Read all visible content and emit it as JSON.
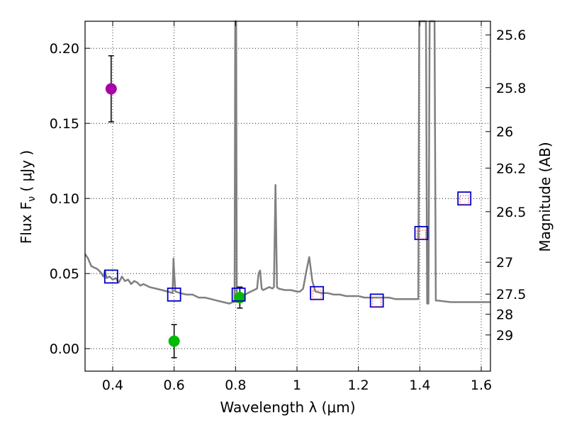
{
  "chart_data": {
    "type": "scatter",
    "xlabel": "Wavelength  λ (μm)",
    "ylabel": "Flux  F",
    "ylabel_sub": "ν",
    "ylabel_unit": "  ( μJy )",
    "y2label": "Magnitude (AB)",
    "xlim": [
      0.31,
      1.63
    ],
    "ylim": [
      -0.015,
      0.218
    ],
    "grid": true,
    "x_ticks": [
      {
        "value": 0.4,
        "label": "0.4"
      },
      {
        "value": 0.6,
        "label": "0.6"
      },
      {
        "value": 0.8,
        "label": "0.8"
      },
      {
        "value": 1.0,
        "label": "1"
      },
      {
        "value": 1.2,
        "label": "1.2"
      },
      {
        "value": 1.4,
        "label": "1.4"
      },
      {
        "value": 1.6,
        "label": "1.6"
      }
    ],
    "y_ticks": [
      {
        "value": 0.0,
        "label": "0.00"
      },
      {
        "value": 0.05,
        "label": "0.05"
      },
      {
        "value": 0.1,
        "label": "0.10"
      },
      {
        "value": 0.15,
        "label": "0.15"
      },
      {
        "value": 0.2,
        "label": "0.20"
      }
    ],
    "y2_ticks": [
      {
        "value": 25.6,
        "label": "25.6"
      },
      {
        "value": 25.8,
        "label": "25.8"
      },
      {
        "value": 26.0,
        "label": "26"
      },
      {
        "value": 26.2,
        "label": "26.2"
      },
      {
        "value": 26.5,
        "label": "26.5"
      },
      {
        "value": 27.0,
        "label": "27"
      },
      {
        "value": 27.5,
        "label": "27.5"
      },
      {
        "value": 28.0,
        "label": "28"
      },
      {
        "value": 29.0,
        "label": "29"
      }
    ],
    "series": [
      {
        "kind": "line",
        "color": "#808080",
        "points": [
          [
            0.31,
            0.063
          ],
          [
            0.32,
            0.06
          ],
          [
            0.33,
            0.055
          ],
          [
            0.34,
            0.054
          ],
          [
            0.35,
            0.053
          ],
          [
            0.36,
            0.051
          ],
          [
            0.37,
            0.048
          ],
          [
            0.375,
            0.052
          ],
          [
            0.38,
            0.047
          ],
          [
            0.39,
            0.048
          ],
          [
            0.4,
            0.046
          ],
          [
            0.41,
            0.047
          ],
          [
            0.42,
            0.044
          ],
          [
            0.43,
            0.048
          ],
          [
            0.44,
            0.045
          ],
          [
            0.45,
            0.046
          ],
          [
            0.46,
            0.043
          ],
          [
            0.47,
            0.045
          ],
          [
            0.48,
            0.044
          ],
          [
            0.49,
            0.042
          ],
          [
            0.5,
            0.043
          ],
          [
            0.52,
            0.041
          ],
          [
            0.54,
            0.04
          ],
          [
            0.56,
            0.039
          ],
          [
            0.58,
            0.038
          ],
          [
            0.595,
            0.037
          ],
          [
            0.598,
            0.06
          ],
          [
            0.601,
            0.048
          ],
          [
            0.604,
            0.038
          ],
          [
            0.62,
            0.037
          ],
          [
            0.64,
            0.036
          ],
          [
            0.66,
            0.036
          ],
          [
            0.68,
            0.034
          ],
          [
            0.7,
            0.034
          ],
          [
            0.72,
            0.033
          ],
          [
            0.74,
            0.032
          ],
          [
            0.76,
            0.031
          ],
          [
            0.78,
            0.03
          ],
          [
            0.79,
            0.031
          ],
          [
            0.797,
            0.031
          ],
          [
            0.799,
            0.218
          ],
          [
            0.802,
            0.218
          ],
          [
            0.804,
            0.031
          ],
          [
            0.81,
            0.032
          ],
          [
            0.82,
            0.034
          ],
          [
            0.83,
            0.036
          ],
          [
            0.84,
            0.037
          ],
          [
            0.85,
            0.038
          ],
          [
            0.86,
            0.039
          ],
          [
            0.87,
            0.04
          ],
          [
            0.875,
            0.05
          ],
          [
            0.88,
            0.052
          ],
          [
            0.885,
            0.04
          ],
          [
            0.89,
            0.039
          ],
          [
            0.9,
            0.04
          ],
          [
            0.91,
            0.041
          ],
          [
            0.92,
            0.04
          ],
          [
            0.925,
            0.041
          ],
          [
            0.93,
            0.109
          ],
          [
            0.935,
            0.041
          ],
          [
            0.94,
            0.04
          ],
          [
            0.96,
            0.039
          ],
          [
            0.98,
            0.039
          ],
          [
            1.0,
            0.038
          ],
          [
            1.01,
            0.038
          ],
          [
            1.02,
            0.04
          ],
          [
            1.03,
            0.051
          ],
          [
            1.04,
            0.061
          ],
          [
            1.05,
            0.045
          ],
          [
            1.06,
            0.038
          ],
          [
            1.08,
            0.037
          ],
          [
            1.1,
            0.037
          ],
          [
            1.12,
            0.036
          ],
          [
            1.14,
            0.036
          ],
          [
            1.16,
            0.035
          ],
          [
            1.18,
            0.035
          ],
          [
            1.2,
            0.035
          ],
          [
            1.22,
            0.034
          ],
          [
            1.24,
            0.034
          ],
          [
            1.26,
            0.034
          ],
          [
            1.28,
            0.034
          ],
          [
            1.3,
            0.034
          ],
          [
            1.32,
            0.033
          ],
          [
            1.34,
            0.033
          ],
          [
            1.36,
            0.033
          ],
          [
            1.38,
            0.033
          ],
          [
            1.395,
            0.033
          ],
          [
            1.398,
            0.218
          ],
          [
            1.405,
            0.218
          ],
          [
            1.41,
            0.218
          ],
          [
            1.42,
            0.218
          ],
          [
            1.424,
            0.03
          ],
          [
            1.428,
            0.03
          ],
          [
            1.432,
            0.218
          ],
          [
            1.44,
            0.218
          ],
          [
            1.448,
            0.218
          ],
          [
            1.452,
            0.032
          ],
          [
            1.46,
            0.032
          ],
          [
            1.5,
            0.031
          ],
          [
            1.55,
            0.031
          ],
          [
            1.6,
            0.031
          ],
          [
            1.63,
            0.031
          ]
        ]
      },
      {
        "kind": "points",
        "marker": "circle",
        "points": [
          {
            "x": 0.395,
            "y": 0.173,
            "yerr": 0.022,
            "color": "#aa00aa"
          },
          {
            "x": 0.6,
            "y": 0.005,
            "yerr": 0.011,
            "color": "#00bb00"
          },
          {
            "x": 0.814,
            "y": 0.034,
            "yerr": 0.007,
            "color": "#00bb00"
          }
        ]
      },
      {
        "kind": "points",
        "marker": "square",
        "color": "#0000cc",
        "points": [
          {
            "x": 0.395,
            "y": 0.048
          },
          {
            "x": 0.6,
            "y": 0.036
          },
          {
            "x": 0.81,
            "y": 0.036
          },
          {
            "x": 1.065,
            "y": 0.037
          },
          {
            "x": 1.26,
            "y": 0.032
          },
          {
            "x": 1.405,
            "y": 0.077
          },
          {
            "x": 1.545,
            "y": 0.1
          }
        ]
      },
      {
        "kind": "points",
        "marker": "square-small",
        "color": "#ff6666",
        "points": [
          {
            "x": 1.065,
            "y": 0.036
          },
          {
            "x": 1.26,
            "y": 0.031
          },
          {
            "x": 1.405,
            "y": 0.076
          },
          {
            "x": 1.545,
            "y": 0.099
          }
        ]
      }
    ]
  }
}
